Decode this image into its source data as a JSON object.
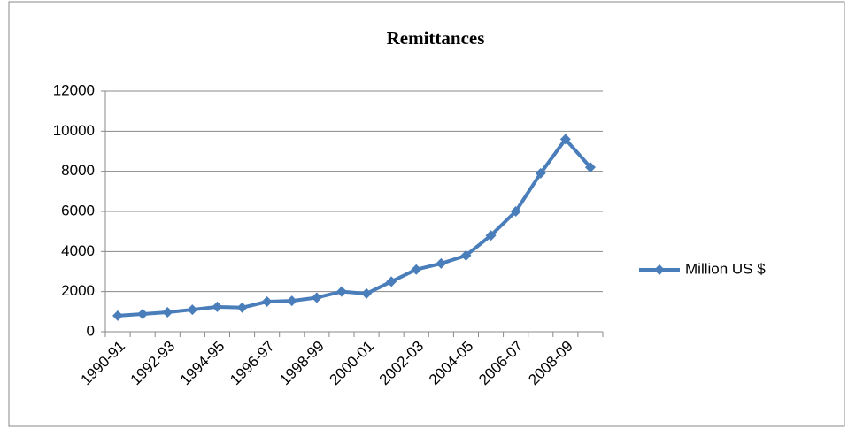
{
  "chart_data": {
    "type": "line",
    "title": "Remittances",
    "categories": [
      "1990-91",
      null,
      "1992-93",
      null,
      "1994-95",
      null,
      "1996-97",
      null,
      "1998-99",
      null,
      "2000-01",
      null,
      "2002-03",
      null,
      "2004-05",
      null,
      "2006-07",
      null,
      "2008-09",
      null
    ],
    "series": [
      {
        "name": "Million US $",
        "color": "#4a7ebb",
        "values": [
          800,
          880,
          970,
          1100,
          1240,
          1200,
          1500,
          1540,
          1700,
          2000,
          1900,
          2500,
          3100,
          3400,
          3800,
          4800,
          6000,
          7900,
          9600,
          8200
        ]
      }
    ],
    "ylim": [
      0,
      12000
    ],
    "yticks": [
      0,
      2000,
      4000,
      6000,
      8000,
      10000,
      12000
    ],
    "grid": true,
    "legend": "right"
  }
}
